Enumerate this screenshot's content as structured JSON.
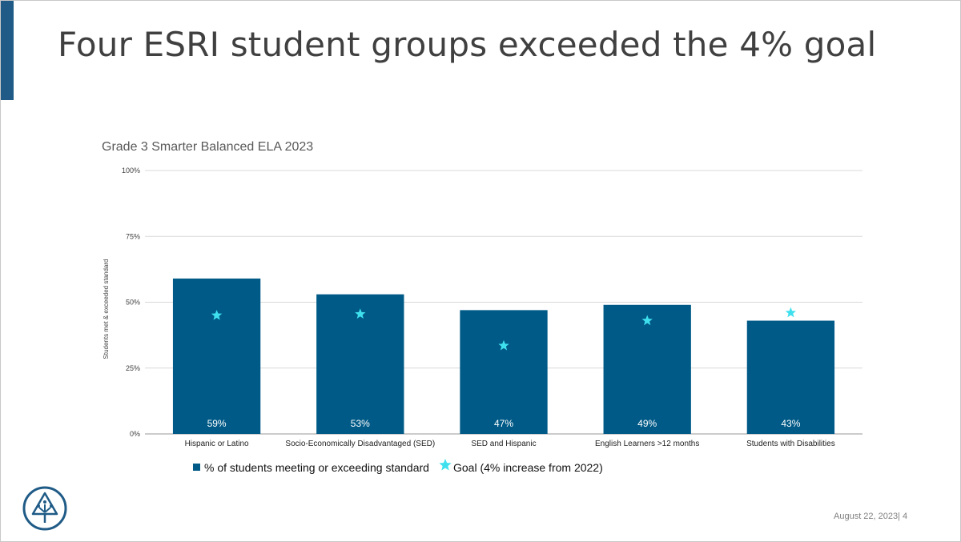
{
  "slide": {
    "title": "Four ESRI student groups exceeded the 4% goal",
    "footer_date": "August 22, 2023",
    "footer_separator": "|",
    "page_number": "4"
  },
  "chart_data": {
    "type": "bar",
    "title": "Grade 3 Smarter Balanced ELA 2023",
    "ylabel": "Students met & exceeded standard",
    "xlabel": "",
    "ylim": [
      0,
      100
    ],
    "yticks": [
      "0%",
      "25%",
      "50%",
      "75%",
      "100%"
    ],
    "ytick_values": [
      0,
      25,
      50,
      75,
      100
    ],
    "categories": [
      "Hispanic or Latino",
      "Socio-Economically Disadvantaged (SED)",
      "SED and Hispanic",
      "English Learners >12 months",
      "Students with Disabilities"
    ],
    "series": [
      {
        "name": "% of students meeting or exceeding standard",
        "values": [
          59,
          53,
          47,
          49,
          43
        ],
        "labels": [
          "59%",
          "53%",
          "47%",
          "49%",
          "43%"
        ],
        "color": "#005a87"
      },
      {
        "name": "Goal (4% increase from 2022)",
        "values": [
          45,
          45.5,
          33.5,
          43,
          46
        ],
        "marker": "star",
        "color": "#3fe0ee"
      }
    ],
    "grid": true,
    "legend_position": "bottom"
  }
}
